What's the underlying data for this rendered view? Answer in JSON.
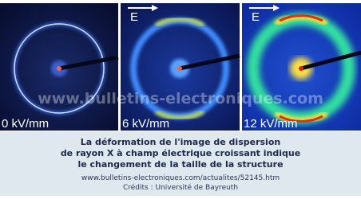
{
  "panels": [
    {
      "label": "0 kV/mm"
    },
    {
      "label": "6 kV/mm",
      "arrow": "E"
    },
    {
      "label": "12 kV/mm",
      "arrow": "E"
    }
  ],
  "watermark": "www.bulletins-electroniques.com",
  "caption": {
    "lines": [
      "La déformation de l'image de dispersion",
      "de rayon X à champ électrique croissant indique",
      "le changement de la taille de la structure"
    ],
    "url": "www.bulletins-electroniques.com/actualites/52145.htm",
    "credits": "Crédits : Université de Bayreuth"
  }
}
